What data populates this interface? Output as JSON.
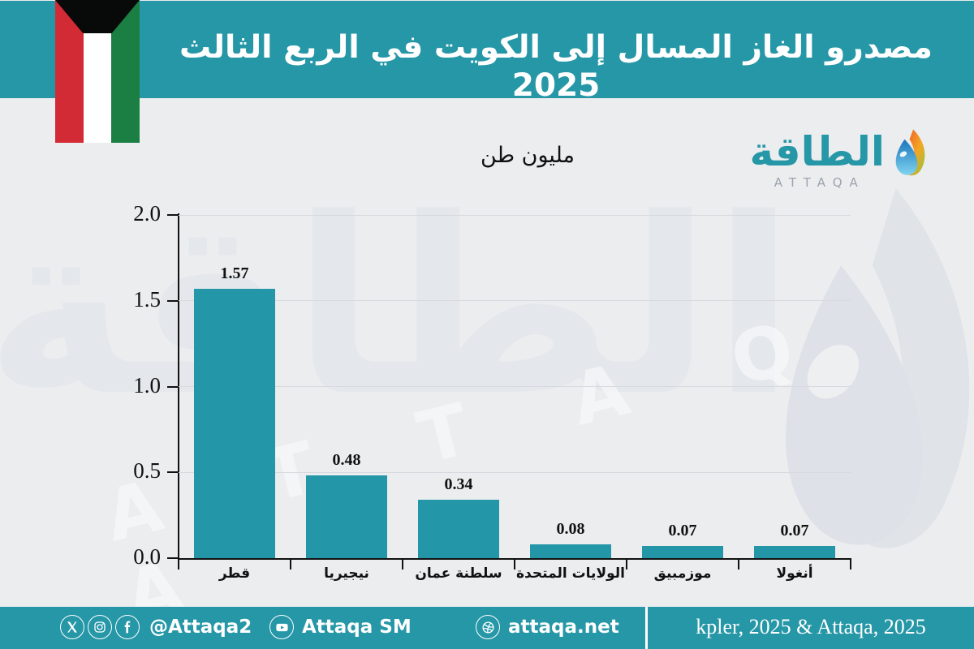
{
  "header": {
    "title": "مصدرو الغاز المسال إلى الكويت في الربع الثالث 2025"
  },
  "flag": {
    "country": "kuwait",
    "colors": {
      "black": "#070a08",
      "red": "#d32b35",
      "white": "#ffffff",
      "green": "#1b7f44"
    }
  },
  "units_label": "مليون طن",
  "logo": {
    "arabic": "الطاقة",
    "latin": "ATTAQA"
  },
  "watermark": {
    "arabic": "الطاقة",
    "latin": "A T T A Q A"
  },
  "chart_data": {
    "type": "bar",
    "categories": [
      "قطر",
      "نيجيريا",
      "سلطنة عمان",
      "الولايات المتحدة",
      "موزمبيق",
      "أنغولا"
    ],
    "values": [
      1.57,
      0.48,
      0.34,
      0.08,
      0.07,
      0.07
    ],
    "value_labels": [
      "1.57",
      "0.48",
      "0.34",
      "0.08",
      "0.07",
      "0.07"
    ],
    "title": "مصدرو الغاز المسال إلى الكويت في الربع الثالث 2025",
    "xlabel": "",
    "ylabel": "مليون طن",
    "ylim": [
      0,
      2.0
    ],
    "yticks": [
      2.0,
      1.5,
      1.0,
      0.5,
      0.0
    ],
    "ytick_labels": [
      "2.0",
      "1.5",
      "1.0",
      "0.5",
      "0.0"
    ],
    "grid": true,
    "legend": false,
    "bar_color": "#2397a8"
  },
  "footer": {
    "handle": "@Attaqa2",
    "youtube_label": "Attaqa SM",
    "website": "attaqa.net",
    "source": "kpler, 2025 & Attaqa, 2025"
  },
  "colors": {
    "teal": "#2697a7",
    "background": "#ecedef",
    "bar": "#2397a8",
    "gridline": "#d6d9dd",
    "axis": "#111111"
  }
}
